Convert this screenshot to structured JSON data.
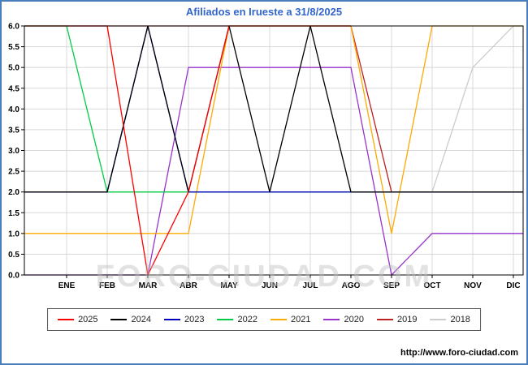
{
  "title": {
    "text": "Afiliados en Irueste a 31/8/2025",
    "color": "#3366cc"
  },
  "watermark": "FORO-CIUDAD.COM",
  "footer_url": "http://www.foro-ciudad.com",
  "frame_color": "#4a7ebb",
  "chart_data": {
    "type": "line",
    "title": "Afiliados en Irueste a 31/8/2025",
    "categories": [
      "ENE",
      "FEB",
      "MAR",
      "ABR",
      "MAY",
      "JUN",
      "JUL",
      "AGO",
      "SEP",
      "OCT",
      "NOV",
      "DIC"
    ],
    "ylim": [
      0,
      6
    ],
    "ytick_step": 0.5,
    "grid": true,
    "grid_color": "#d8d8d8",
    "axis_color": "#000000",
    "legend_position": "bottom",
    "series": [
      {
        "name": "2025",
        "color": "#ff0000",
        "values": [
          6,
          6,
          0,
          2,
          6,
          6,
          6,
          6,
          null,
          null,
          null,
          null
        ]
      },
      {
        "name": "2024",
        "color": "#000000",
        "values": [
          2,
          2,
          6,
          2,
          6,
          2,
          6,
          2,
          2,
          2,
          2,
          2
        ]
      },
      {
        "name": "2023",
        "color": "#0000bb",
        "values": [
          2,
          2,
          6,
          2,
          2,
          2,
          2,
          2,
          2,
          2,
          2,
          2
        ]
      },
      {
        "name": "2022",
        "color": "#00cc44",
        "values": [
          6,
          2,
          2,
          2,
          2,
          2,
          2,
          2,
          2,
          2,
          2,
          2
        ]
      },
      {
        "name": "2021",
        "color": "#ffaa00",
        "values": [
          1,
          1,
          1,
          1,
          6,
          6,
          6,
          6,
          1,
          6,
          6,
          6
        ]
      },
      {
        "name": "2020",
        "color": "#9933cc",
        "values": [
          0,
          0,
          0,
          5,
          5,
          5,
          5,
          5,
          0,
          1,
          1,
          1
        ]
      },
      {
        "name": "2019",
        "color": "#bb2222",
        "values": [
          6,
          6,
          6,
          6,
          6,
          6,
          6,
          6,
          2,
          2,
          2,
          2
        ]
      },
      {
        "name": "2018",
        "color": "#cccccc",
        "values": [
          2,
          2,
          2,
          2,
          2,
          2,
          2,
          2,
          2,
          2,
          5,
          6
        ]
      }
    ]
  }
}
